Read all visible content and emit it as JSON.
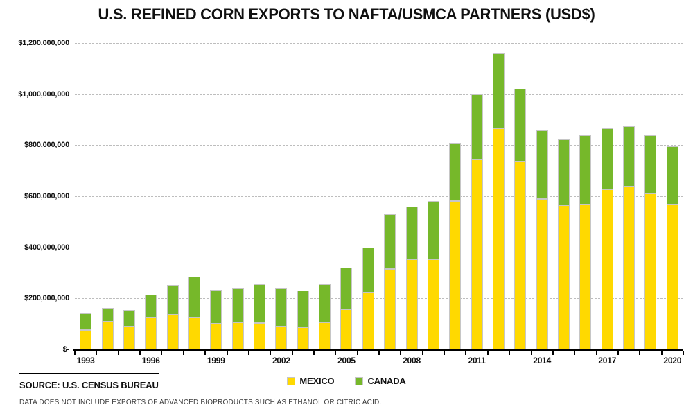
{
  "title": "U.S. REFINED CORN EXPORTS TO NAFTA/USMCA PARTNERS (USD$)",
  "chart_data": {
    "type": "bar",
    "stacked": true,
    "title": "U.S. REFINED CORN EXPORTS TO NAFTA/USMCA PARTNERS (USD$)",
    "unit": "USD millions",
    "categories": [
      1993,
      1994,
      1995,
      1996,
      1997,
      1998,
      1999,
      2000,
      2001,
      2002,
      2003,
      2004,
      2005,
      2006,
      2007,
      2008,
      2009,
      2010,
      2011,
      2012,
      2013,
      2014,
      2015,
      2016,
      2017,
      2018,
      2019,
      2020
    ],
    "series": [
      {
        "name": "MEXICO",
        "color": "#FFD900",
        "values": [
          77,
          108,
          90,
          125,
          136,
          126,
          101,
          107,
          102,
          89,
          86,
          106,
          158,
          223,
          314,
          354,
          353,
          582,
          745,
          865,
          735,
          588,
          566,
          568,
          627,
          638,
          612,
          567
        ]
      },
      {
        "name": "CANADA",
        "color": "#76B82A",
        "values": [
          63,
          54,
          64,
          89,
          117,
          159,
          132,
          133,
          153,
          151,
          145,
          150,
          163,
          175,
          215,
          205,
          227,
          228,
          255,
          295,
          285,
          270,
          257,
          272,
          238,
          237,
          226,
          228
        ]
      }
    ],
    "ylim": [
      0,
      1200
    ],
    "y_ticks": [
      {
        "value": 1200,
        "label": "$1,200,000,000"
      },
      {
        "value": 1000,
        "label": "$1,000,000,000"
      },
      {
        "value": 800,
        "label": "$800,000,000"
      },
      {
        "value": 600,
        "label": "$600,000,000"
      },
      {
        "value": 400,
        "label": "$400,000,000"
      },
      {
        "value": 200,
        "label": "$200,000,000"
      },
      {
        "value": 0,
        "label": "$-"
      }
    ],
    "x_tick_labels": [
      "1993",
      "1996",
      "1999",
      "2002",
      "2005",
      "2008",
      "2011",
      "2014",
      "2017",
      "2020"
    ],
    "grid": "horizontal-dashed",
    "legend_position": "bottom-center"
  },
  "legend": {
    "items": [
      {
        "label": "MEXICO",
        "color": "#FFD900"
      },
      {
        "label": "CANADA",
        "color": "#76B82A"
      }
    ]
  },
  "source": {
    "label": "SOURCE: U.S. CENSUS BUREAU"
  },
  "footnote": "DATA DOES NOT INCLUDE EXPORTS OF ADVANCED BIOPRODUCTS SUCH AS ETHANOL OR CITRIC ACID."
}
